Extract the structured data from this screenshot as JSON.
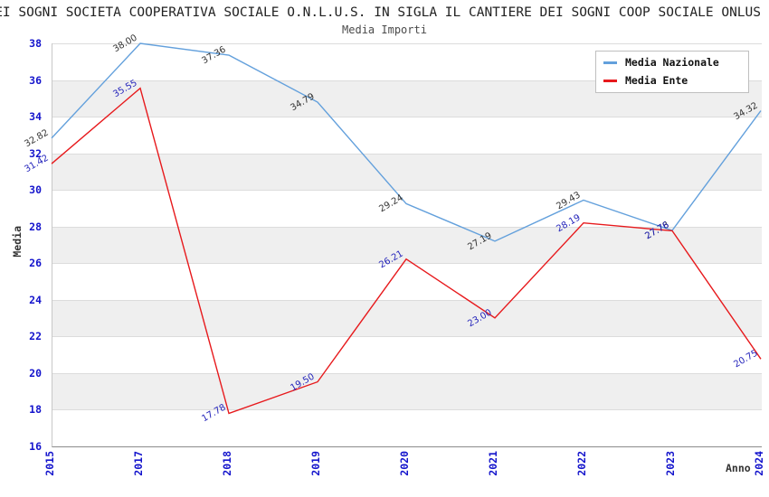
{
  "header": {
    "title": "IL CANTIERE DEI SOGNI SOCIETA COOPERATIVA SOCIALE O.N.L.U.S. IN SIGLA IL CANTIERE DEI SOGNI COOP SOCIALE ONLUS",
    "subtitle": "Media Importi"
  },
  "chart_data": {
    "type": "line",
    "title": "Media Importi",
    "xlabel": "Anno",
    "ylabel": "Media",
    "x": [
      2015,
      2017,
      2018,
      2019,
      2020,
      2021,
      2022,
      2023,
      2024
    ],
    "series": [
      {
        "name": "Media Nazionale",
        "color": "#63a0dc",
        "label_color": "#333333",
        "values": [
          32.82,
          38.0,
          37.36,
          34.79,
          29.24,
          27.19,
          29.43,
          27.78,
          34.32
        ]
      },
      {
        "name": "Media Ente",
        "color": "#e7191c",
        "label_color": "#2424bb",
        "values": [
          31.42,
          35.55,
          17.78,
          19.5,
          26.21,
          23.0,
          28.19,
          27.76,
          20.75
        ]
      }
    ],
    "ylim": [
      16,
      38
    ],
    "ytick_step": 2,
    "grid": true,
    "band_fill": "#efefef",
    "tick_color": "#1414cc",
    "legend_position": "top-right"
  }
}
